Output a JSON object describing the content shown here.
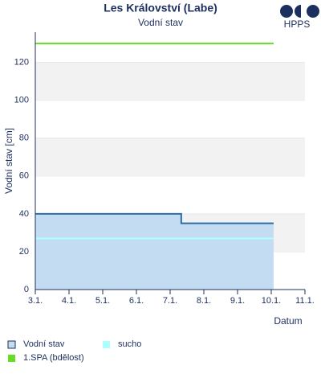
{
  "chart_data": {
    "type": "line",
    "title": "Les Království (Labe)",
    "subtitle": "Vodní stav",
    "logo_text": "HPPS",
    "y_label": "Vodní stav [cm]",
    "x_label": "Datum",
    "xlim": [
      3,
      11
    ],
    "xticks": [
      {
        "value": 3,
        "label": "3.1."
      },
      {
        "value": 4,
        "label": "4.1."
      },
      {
        "value": 5,
        "label": "5.1."
      },
      {
        "value": 6,
        "label": "6.1."
      },
      {
        "value": 7,
        "label": "7.1."
      },
      {
        "value": 8,
        "label": "8.1."
      },
      {
        "value": 9,
        "label": "9.1."
      },
      {
        "value": 10,
        "label": "10.1."
      },
      {
        "value": 11,
        "label": "11.1."
      }
    ],
    "ylim": [
      0,
      136
    ],
    "yticks": [
      0,
      20,
      40,
      60,
      80,
      100,
      120
    ],
    "grid": true,
    "series": [
      {
        "name": "Vodní stav",
        "color": "#2e6da4",
        "fill": "#c4dcf2",
        "x": [
          3,
          7.33,
          7.33,
          10.07
        ],
        "values": [
          40,
          40,
          35,
          35
        ]
      },
      {
        "name": "sucho",
        "color": "#aaffff",
        "x": [
          3,
          10.07
        ],
        "values": [
          27,
          27
        ]
      },
      {
        "name": "1.SPA (bdělost)",
        "color": "#66dd22",
        "x": [
          3,
          10.07
        ],
        "values": [
          130,
          130
        ]
      }
    ]
  }
}
